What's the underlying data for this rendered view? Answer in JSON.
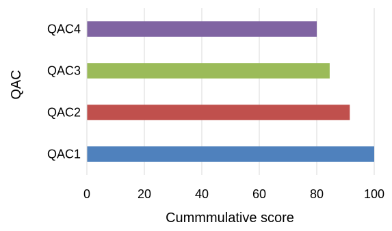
{
  "chart_data": {
    "type": "bar",
    "orientation": "horizontal",
    "title": "",
    "categories": [
      "QAC1",
      "QAC2",
      "QAC3",
      "QAC4"
    ],
    "values": [
      100,
      91.5,
      84.5,
      80
    ],
    "colors": [
      "#4F81BD",
      "#C0504D",
      "#9BBB59",
      "#8064A2"
    ],
    "xlabel": "Cummmulative score",
    "ylabel": "QAC",
    "xlim": [
      0,
      100
    ],
    "xticks": [
      0,
      20,
      40,
      60,
      80,
      100
    ],
    "xtick_labels": [
      "0",
      "20",
      "40",
      "60",
      "80",
      "100"
    ],
    "grid": "vertical",
    "grid_color": "#D9D9D9",
    "axis_color": "#D9D9D9",
    "legend": "none"
  }
}
